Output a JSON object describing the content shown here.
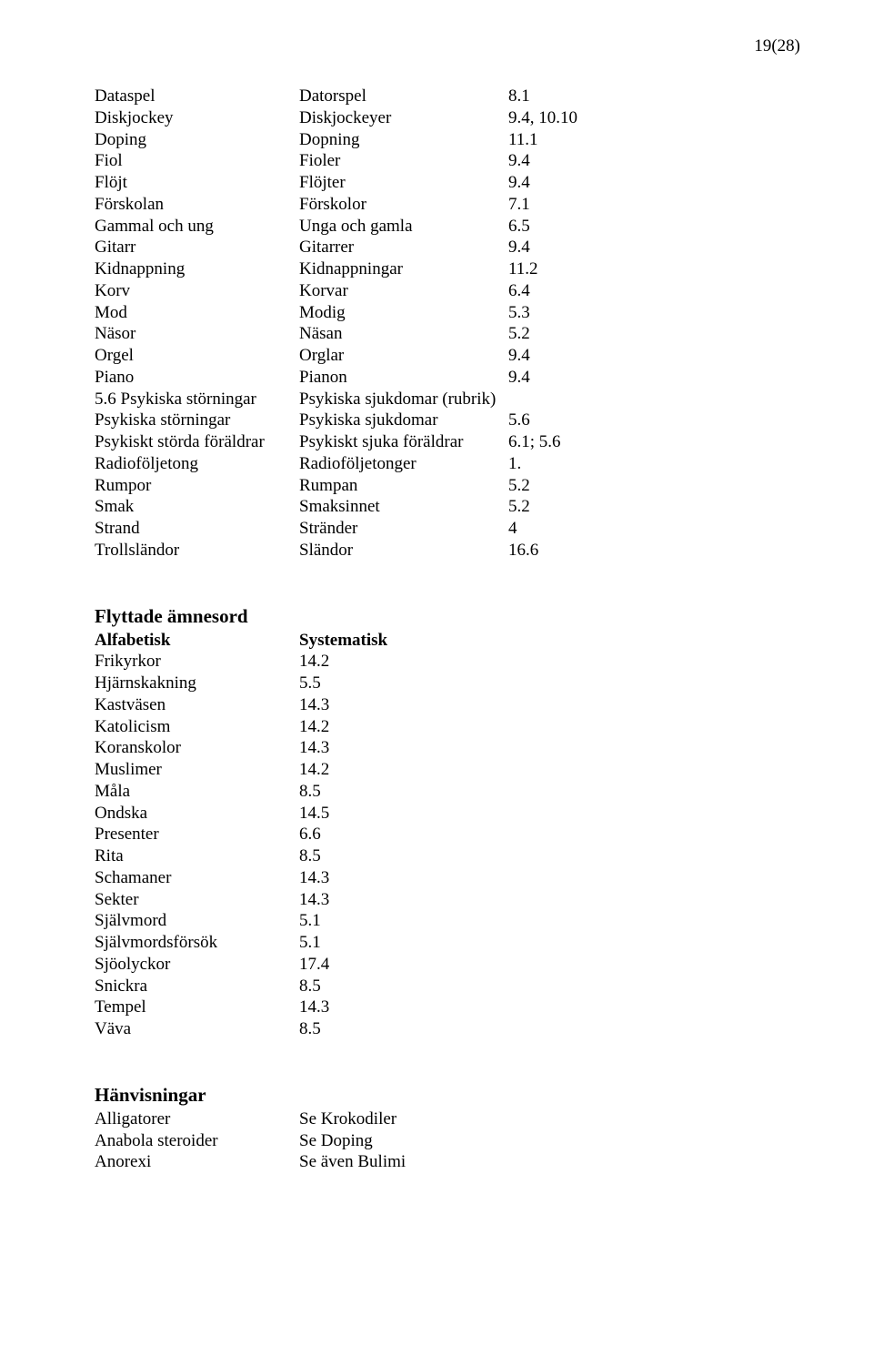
{
  "page_number": "19(28)",
  "table1": {
    "rows": [
      [
        "Dataspel",
        "Datorspel",
        "8.1"
      ],
      [
        "Diskjockey",
        "Diskjockeyer",
        "9.4, 10.10"
      ],
      [
        "Doping",
        "Dopning",
        "11.1"
      ],
      [
        "Fiol",
        "Fioler",
        "9.4"
      ],
      [
        "Flöjt",
        "Flöjter",
        "9.4"
      ],
      [
        "Förskolan",
        "Förskolor",
        "7.1"
      ],
      [
        "Gammal och ung",
        "Unga och gamla",
        "6.5"
      ],
      [
        "Gitarr",
        "Gitarrer",
        "9.4"
      ],
      [
        "Kidnappning",
        "Kidnappningar",
        "11.2"
      ],
      [
        "Korv",
        "Korvar",
        "6.4"
      ],
      [
        "Mod",
        "Modig",
        "5.3"
      ],
      [
        "Näsor",
        "Näsan",
        "5.2"
      ],
      [
        "Orgel",
        "Orglar",
        "9.4"
      ],
      [
        "Piano",
        "Pianon",
        "9.4"
      ],
      [
        "5.6 Psykiska störningar",
        "Psykiska sjukdomar (rubrik)",
        ""
      ],
      [
        "Psykiska störningar",
        "Psykiska sjukdomar",
        "5.6"
      ],
      [
        "Psykiskt störda föräldrar",
        "Psykiskt sjuka föräldrar",
        "6.1; 5.6"
      ],
      [
        "Radioföljetong",
        "Radioföljetonger",
        "1."
      ],
      [
        "Rumpor",
        "Rumpan",
        "5.2"
      ],
      [
        "Smak",
        "Smaksinnet",
        "5.2"
      ],
      [
        "Strand",
        "Stränder",
        "4"
      ],
      [
        "Trollsländor",
        "Sländor",
        "16.6"
      ]
    ]
  },
  "section2": {
    "heading": "Flyttade ämnesord",
    "header_row": [
      "Alfabetisk",
      "Systematisk"
    ],
    "rows": [
      [
        "Frikyrkor",
        "14.2"
      ],
      [
        "Hjärnskakning",
        "5.5"
      ],
      [
        "Kastväsen",
        "14.3"
      ],
      [
        "Katolicism",
        "14.2"
      ],
      [
        "Koranskolor",
        "14.3"
      ],
      [
        "Muslimer",
        "14.2"
      ],
      [
        "Måla",
        "8.5"
      ],
      [
        "Ondska",
        "14.5"
      ],
      [
        "Presenter",
        "6.6"
      ],
      [
        "Rita",
        "8.5"
      ],
      [
        "Schamaner",
        "14.3"
      ],
      [
        "Sekter",
        "14.3"
      ],
      [
        "Självmord",
        "5.1"
      ],
      [
        "Självmordsförsök",
        "5.1"
      ],
      [
        "Sjöolyckor",
        "17.4"
      ],
      [
        "Snickra",
        "8.5"
      ],
      [
        "Tempel",
        "14.3"
      ],
      [
        "Väva",
        "8.5"
      ]
    ]
  },
  "section3": {
    "heading": "Hänvisningar",
    "rows": [
      [
        "Alligatorer",
        "Se Krokodiler"
      ],
      [
        "Anabola steroider",
        "Se Doping"
      ],
      [
        "Anorexi",
        "Se även Bulimi"
      ]
    ]
  }
}
